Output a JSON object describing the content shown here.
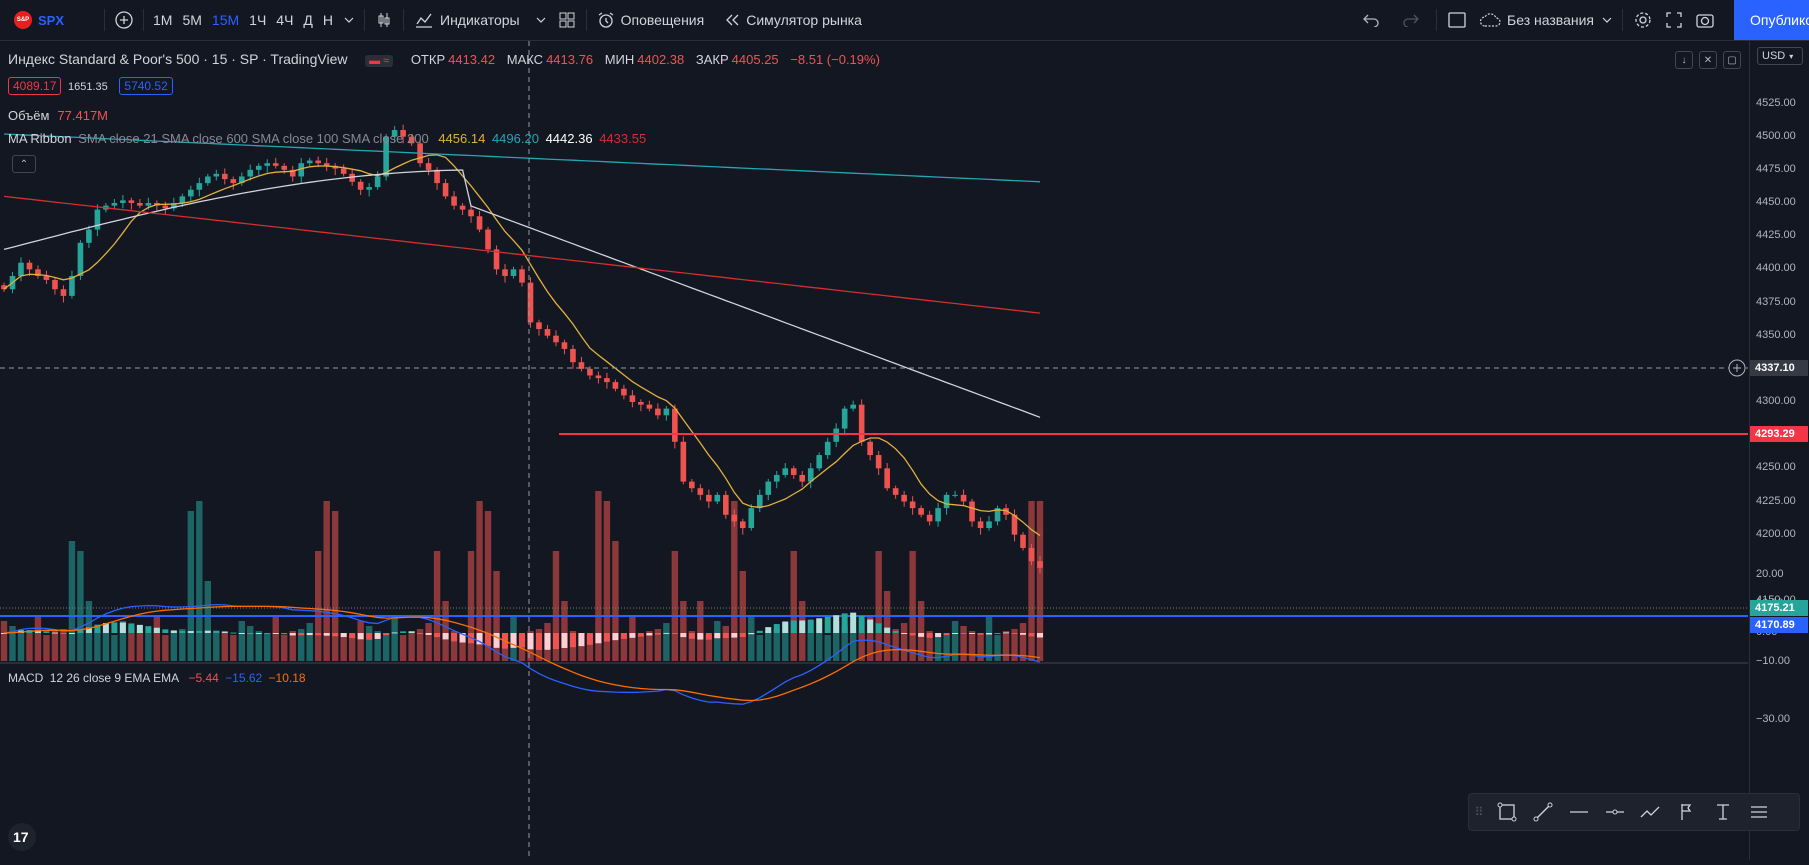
{
  "toolbar": {
    "symbol": "SPX",
    "timeframes": [
      "1M",
      "5M",
      "15M",
      "1Ч",
      "4Ч",
      "Д",
      "Н"
    ],
    "active_timeframe": "15M",
    "indicators_label": "Индикаторы",
    "alerts_label": "Оповещения",
    "replay_label": "Симулятор рынка",
    "layout_name": "Без названия",
    "publish_label": "Опубликовать"
  },
  "legend": {
    "title": "Индекс Standard & Poor's 500 · 15 · SP · TradingView",
    "open_label": "ОТКР",
    "open": "4413.42",
    "high_label": "МАКС",
    "high": "4413.76",
    "low_label": "МИН",
    "low": "4402.38",
    "close_label": "ЗАКР",
    "close": "4405.25",
    "change": "−8.51 (−0.19%)",
    "bid": "4089.17",
    "spread": "1651.35",
    "ask": "5740.52",
    "volume_label": "Объём",
    "volume": "77.417M",
    "ma_label": "MA Ribbon",
    "ma_params": "SMA close 21 SMA close 600 SMA close 100 SMA close 200",
    "ma_values": [
      "4456.14",
      "4496.20",
      "4442.36",
      "4433.55"
    ],
    "macd_label": "MACD",
    "macd_params": "12 26 close 9 EMA EMA",
    "macd_values": [
      "−5.44",
      "−15.62",
      "−10.18"
    ]
  },
  "axis": {
    "currency": "USD",
    "price_ticks": [
      "4525.00",
      "4500.00",
      "4475.00",
      "4450.00",
      "4425.00",
      "4400.00",
      "4375.00",
      "4350.00",
      "4325.00",
      "4300.00",
      "4275.00",
      "4250.00",
      "4225.00",
      "4200.00",
      "4150.00"
    ],
    "macd_ticks": [
      "20.00",
      "10.00",
      "0.00",
      "−10.00",
      "−30.00"
    ],
    "tags": {
      "crosshair": "4337.10",
      "red_line": "4293.29",
      "last_price": "4175.21",
      "blue_line": "4170.89"
    }
  },
  "colors": {
    "up": "#26a69a",
    "down": "#ef5350",
    "accent": "#2962ff",
    "bg": "#131722"
  },
  "chart_data": {
    "type": "candlestick",
    "title": "Индекс Standard & Poor's 500 · 15 · SP",
    "ylim": [
      4140,
      4540
    ],
    "closes": [
      4385,
      4395,
      4405,
      4400,
      4395,
      4392,
      4385,
      4380,
      4395,
      4420,
      4430,
      4445,
      4448,
      4450,
      4452,
      4450,
      4448,
      4450,
      4448,
      4446,
      4450,
      4455,
      4460,
      4465,
      4470,
      4472,
      4468,
      4465,
      4470,
      4475,
      4478,
      4480,
      4478,
      4475,
      4470,
      4480,
      4482,
      4480,
      4478,
      4476,
      4472,
      4466,
      4460,
      4462,
      4470,
      4500,
      4505,
      4500,
      4495,
      4480,
      4475,
      4465,
      4455,
      4448,
      4445,
      4440,
      4430,
      4415,
      4400,
      4395,
      4400,
      4390,
      4360,
      4355,
      4350,
      4345,
      4340,
      4330,
      4325,
      4320,
      4318,
      4315,
      4310,
      4305,
      4300,
      4298,
      4295,
      4290,
      4295,
      4270,
      4240,
      4235,
      4230,
      4225,
      4230,
      4215,
      4210,
      4205,
      4220,
      4230,
      4240,
      4245,
      4250,
      4245,
      4240,
      4250,
      4260,
      4270,
      4280,
      4295,
      4298,
      4270,
      4260,
      4250,
      4235,
      4230,
      4225,
      4220,
      4215,
      4210,
      4220,
      4230,
      4230,
      4225,
      4210,
      4205,
      4210,
      4220,
      4215,
      4200,
      4190,
      4180,
      4175
    ],
    "volume_label": "Объём",
    "macd": {
      "ylim": [
        -35,
        22
      ]
    }
  }
}
